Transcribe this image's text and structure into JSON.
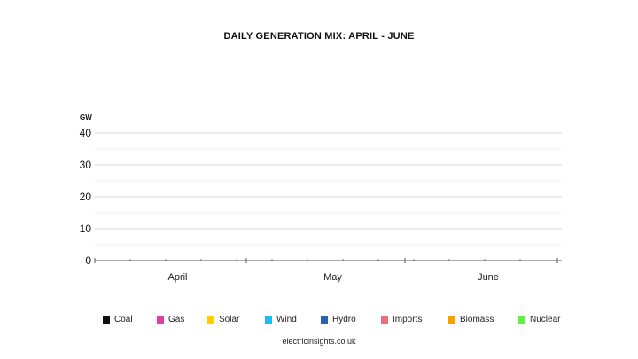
{
  "title": "DAILY GENERATION MIX: APRIL - JUNE",
  "source": "electricinsights.co.uk",
  "chart_data": {
    "type": "area",
    "title": "DAILY GENERATION MIX: APRIL - JUNE",
    "ylabel": "GW",
    "ylim": [
      0,
      40
    ],
    "yticks": [
      "0",
      "10",
      "20",
      "30",
      "40"
    ],
    "months": [
      "April",
      "May",
      "June"
    ],
    "grid": true,
    "legend_position": "bottom",
    "series": [
      {
        "name": "Coal",
        "color": "#111111",
        "values": []
      },
      {
        "name": "Gas",
        "color": "#e040a0",
        "values": []
      },
      {
        "name": "Solar",
        "color": "#ffcc00",
        "values": []
      },
      {
        "name": "Wind",
        "color": "#22b8f0",
        "values": []
      },
      {
        "name": "Hydro",
        "color": "#2a5fb8",
        "values": []
      },
      {
        "name": "Imports",
        "color": "#f06b78",
        "values": []
      },
      {
        "name": "Biomass",
        "color": "#f5a300",
        "values": []
      },
      {
        "name": "Nuclear",
        "color": "#66ee44",
        "values": []
      }
    ]
  }
}
